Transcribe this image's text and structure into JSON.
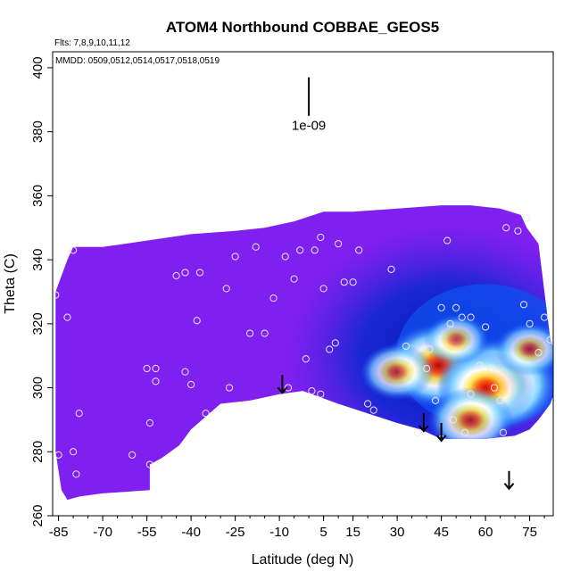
{
  "chart_data": {
    "type": "heatmap",
    "title": "ATOM4 Northbound COBBAE_GEOS5",
    "annotations": {
      "flights": "Flts: 7,8,9,10,11,12",
      "dates": "MMDD: 0509,0512,0514,0517,0518,0519",
      "scale_label": "1e-09"
    },
    "xlabel": "Latitude (deg N)",
    "ylabel": "Theta (C)",
    "xlim": [
      -87,
      83
    ],
    "ylim": [
      260,
      405
    ],
    "x_ticks": [
      -85,
      -70,
      -55,
      -40,
      -25,
      -10,
      5,
      15,
      30,
      45,
      60,
      75
    ],
    "y_ticks": [
      260,
      280,
      300,
      320,
      340,
      360,
      380,
      400
    ],
    "top_boundary": [
      [
        -86,
        330
      ],
      [
        -82,
        340
      ],
      [
        -80,
        344
      ],
      [
        -70,
        344
      ],
      [
        -55,
        346
      ],
      [
        -40,
        348
      ],
      [
        -25,
        349
      ],
      [
        -15,
        350
      ],
      [
        -5,
        352
      ],
      [
        5,
        355
      ],
      [
        15,
        355
      ],
      [
        30,
        356
      ],
      [
        45,
        357
      ],
      [
        55,
        357
      ],
      [
        65,
        356
      ],
      [
        72,
        354
      ],
      [
        74,
        350
      ],
      [
        78,
        345
      ],
      [
        80,
        330
      ],
      [
        82,
        315
      ],
      [
        84,
        310
      ]
    ],
    "bottom_boundary": [
      [
        84,
        300
      ],
      [
        82,
        295
      ],
      [
        78,
        290
      ],
      [
        75,
        287
      ],
      [
        70,
        285
      ],
      [
        60,
        284
      ],
      [
        45,
        284
      ],
      [
        38,
        287
      ],
      [
        30,
        289
      ],
      [
        20,
        292
      ],
      [
        10,
        295
      ],
      [
        4,
        297
      ],
      [
        -2,
        299
      ],
      [
        -10,
        298
      ],
      [
        -20,
        296
      ],
      [
        -30,
        295
      ],
      [
        -40,
        287
      ],
      [
        -44,
        282
      ],
      [
        -50,
        278
      ],
      [
        -54,
        276
      ],
      [
        -54,
        268
      ],
      [
        -70,
        267
      ],
      [
        -78,
        266
      ],
      [
        -82,
        265
      ],
      [
        -84,
        268
      ],
      [
        -86,
        280
      ]
    ],
    "hotspots": [
      {
        "lat": 44,
        "theta": 307,
        "intensity": 0.85
      },
      {
        "lat": 64,
        "theta": 301,
        "intensity": 1.0
      },
      {
        "lat": 60,
        "theta": 300,
        "intensity": 0.7
      },
      {
        "lat": 30,
        "theta": 305,
        "intensity": 0.4
      },
      {
        "lat": 55,
        "theta": 290,
        "intensity": 0.55
      },
      {
        "lat": 75,
        "theta": 312,
        "intensity": 0.35
      },
      {
        "lat": 50,
        "theta": 315,
        "intensity": 0.3
      }
    ],
    "low_zone": {
      "lat": [
        -5,
        84
      ],
      "theta": [
        284,
        352
      ]
    },
    "points": [
      [
        -86,
        329
      ],
      [
        -82,
        322
      ],
      [
        -80,
        343
      ],
      [
        -78,
        292
      ],
      [
        -80,
        280
      ],
      [
        -79,
        273
      ],
      [
        -85,
        279
      ],
      [
        -60,
        279
      ],
      [
        -55,
        306
      ],
      [
        -52,
        306
      ],
      [
        -52,
        302
      ],
      [
        -54,
        289
      ],
      [
        -54,
        276
      ],
      [
        -45,
        335
      ],
      [
        -42,
        336
      ],
      [
        -37,
        336
      ],
      [
        -38,
        321
      ],
      [
        -42,
        305
      ],
      [
        -40,
        301
      ],
      [
        -35,
        292
      ],
      [
        -27,
        300
      ],
      [
        -25,
        341
      ],
      [
        -18,
        344
      ],
      [
        -12,
        328
      ],
      [
        -15,
        317
      ],
      [
        -20,
        317
      ],
      [
        -28,
        331
      ],
      [
        -8,
        341
      ],
      [
        -3,
        343
      ],
      [
        -5,
        334
      ],
      [
        2,
        343
      ],
      [
        4,
        347
      ],
      [
        5,
        331
      ],
      [
        10,
        345
      ],
      [
        12,
        333
      ],
      [
        -7,
        300
      ],
      [
        -1,
        309
      ],
      [
        1,
        299
      ],
      [
        4,
        298
      ],
      [
        7,
        312
      ],
      [
        9,
        314
      ],
      [
        15,
        333
      ],
      [
        17,
        343
      ],
      [
        20,
        295
      ],
      [
        22,
        293
      ],
      [
        28,
        337
      ],
      [
        33,
        313
      ],
      [
        40,
        306
      ],
      [
        45,
        325
      ],
      [
        47,
        346
      ],
      [
        48,
        320
      ],
      [
        50,
        325
      ],
      [
        52,
        322
      ],
      [
        55,
        322
      ],
      [
        55,
        298
      ],
      [
        60,
        319
      ],
      [
        62,
        306
      ],
      [
        63,
        300
      ],
      [
        65,
        296
      ],
      [
        66,
        286
      ],
      [
        67,
        350
      ],
      [
        71,
        349
      ],
      [
        73,
        326
      ],
      [
        75,
        320
      ],
      [
        78,
        311
      ],
      [
        80,
        322
      ],
      [
        82,
        315
      ],
      [
        74,
        353
      ],
      [
        58,
        307
      ],
      [
        53,
        286
      ],
      [
        41,
        312
      ],
      [
        43,
        296
      ],
      [
        49,
        290
      ],
      [
        37,
        286
      ],
      [
        45,
        284
      ]
    ],
    "arrows": [
      {
        "lat": -9,
        "theta": 304
      },
      {
        "lat": 39,
        "theta": 292
      },
      {
        "lat": 45,
        "theta": 289
      },
      {
        "lat": 68,
        "theta": 274
      }
    ],
    "scale_bar": {
      "lat": 0,
      "theta_top": 397,
      "theta_bottom": 385
    },
    "colors": {
      "background_fill": "#8020f0",
      "deep_blue": "#0010a0",
      "blue": "#1060ff",
      "light_blue": "#60c0ff",
      "white": "#ffffff",
      "yellow": "#ffe040",
      "red": "#c00000"
    }
  }
}
